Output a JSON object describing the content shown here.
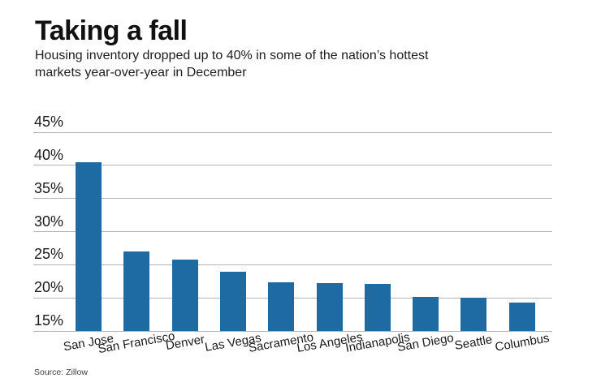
{
  "header": {
    "title": "Taking a fall",
    "subtitle_line1": "Housing inventory dropped up to 40% in some of the nation’s hottest",
    "subtitle_line2": "markets year-over-year in December"
  },
  "chart_data": {
    "type": "bar",
    "title": "Taking a fall",
    "subtitle": "Housing inventory dropped up to 40% in some of the nation’s hottest markets year-over-year in December",
    "categories": [
      "San Jose",
      "San Francisco",
      "Denver",
      "Las Vegas",
      "Sacramento",
      "Los Angeles",
      "Indianapolis",
      "San Diego",
      "Seattle",
      "Columbus"
    ],
    "values": [
      40.5,
      27.0,
      25.8,
      24.0,
      22.4,
      22.2,
      22.1,
      20.1,
      20.0,
      19.3
    ],
    "unit": "%",
    "xlabel": "",
    "ylabel": "",
    "ylim": [
      15,
      45
    ],
    "yticks": [
      15,
      20,
      25,
      30,
      35,
      40,
      45
    ],
    "ytick_labels": [
      "15%",
      "20%",
      "25%",
      "30%",
      "35%",
      "40%",
      "45%"
    ],
    "grid": "horizontal",
    "legend": "none",
    "bar_color": "#1e6ba4",
    "gridline_color": "#b3b3b3"
  },
  "footer": {
    "source": "Source: Zillow"
  }
}
